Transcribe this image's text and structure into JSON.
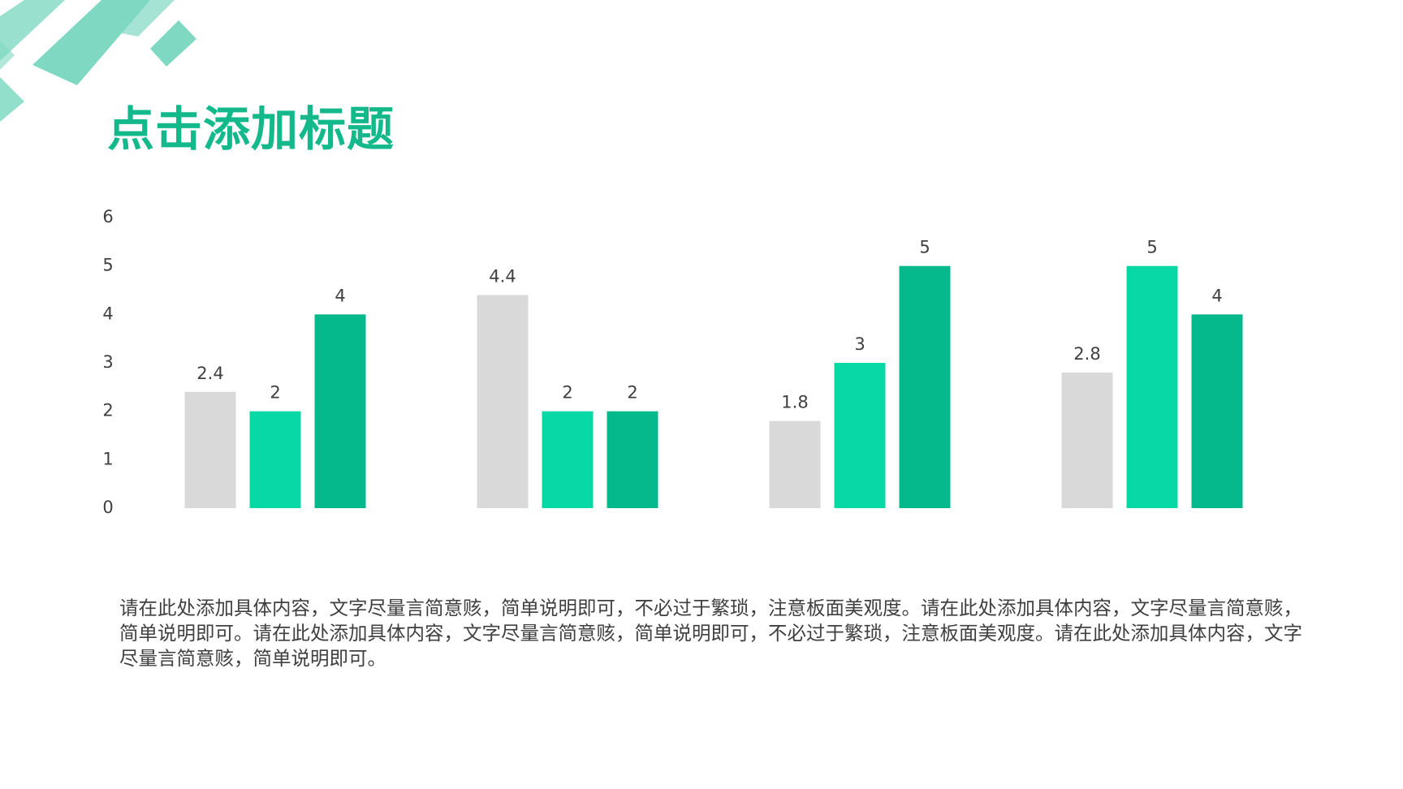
{
  "title": "点击添加标题",
  "chart_data": {
    "type": "bar",
    "categories": [
      null,
      null,
      null,
      null
    ],
    "series": [
      {
        "color": "#d9d9d9",
        "values": [
          2.4,
          4.4,
          1.8,
          2.8
        ]
      },
      {
        "color": "#08d8a6",
        "values": [
          2,
          2,
          3,
          5
        ]
      },
      {
        "color": "#06b98c",
        "values": [
          4,
          2,
          5,
          4
        ]
      }
    ],
    "ylim": [
      0,
      6
    ],
    "yticks": [
      0,
      1,
      2,
      3,
      4,
      5,
      6
    ],
    "grid": false
  },
  "body": "请在此处添加具体内容，文字尽量言简意赅，简单说明即可，不必过于繁琐，注意板面美观度。请在此处添加具体内容，文字尽量言简意赅，简单说明即可。请在此处添加具体内容，文字尽量言简意赅，简单说明即可，不必过于繁琐，注意板面美观度。请在此处添加具体内容，文字尽量言简意赅，简单说明即可。"
}
